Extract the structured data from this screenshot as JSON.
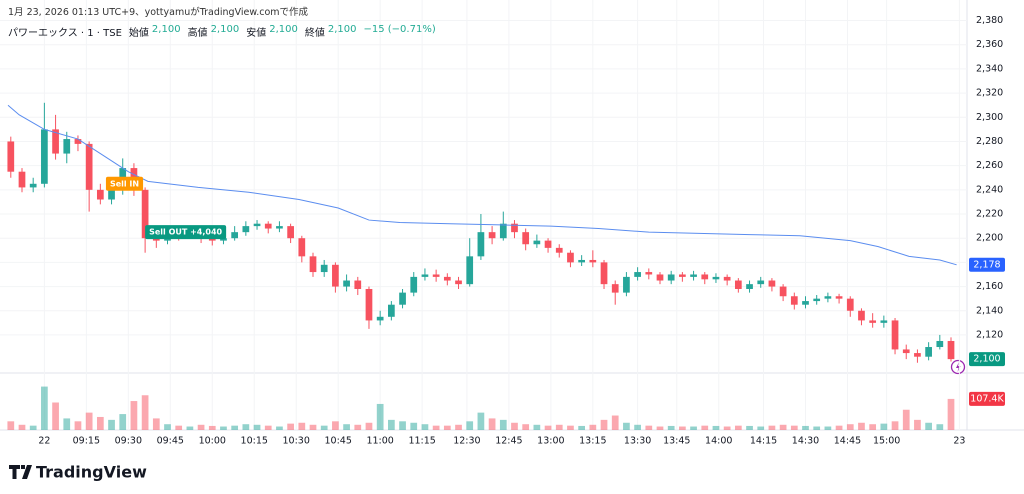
{
  "attribution": "1月 23, 2026 01:13 UTC+9、yottyamuがTradingView.comで作成",
  "legend": {
    "symbol": "パワーエックス · 1 · TSE",
    "open_label": "始値",
    "open": "2,100",
    "high_label": "高値",
    "high": "2,100",
    "low_label": "安値",
    "low": "2,100",
    "close_label": "終値",
    "close": "2,100",
    "change": "−15 (−0.71%)"
  },
  "brand": "TradingView",
  "chart_data": {
    "type": "candlestick",
    "up_color": "#26a69a",
    "down_color": "#f7525f",
    "ma_color": "#5b8def",
    "grid": true,
    "xlim": [
      -13,
      329
    ],
    "ylim": [
      2091,
      2397
    ],
    "volume_lim": [
      0,
      190000
    ],
    "xticks": [
      {
        "value": 0,
        "label": "22"
      },
      {
        "value": 15,
        "label": "09:15"
      },
      {
        "value": 30,
        "label": "09:30"
      },
      {
        "value": 45,
        "label": "09:45"
      },
      {
        "value": 60,
        "label": "10:00"
      },
      {
        "value": 75,
        "label": "10:15"
      },
      {
        "value": 90,
        "label": "10:30"
      },
      {
        "value": 105,
        "label": "10:45"
      },
      {
        "value": 120,
        "label": "11:00"
      },
      {
        "value": 135,
        "label": "11:15"
      },
      {
        "value": 151,
        "label": "12:30"
      },
      {
        "value": 166,
        "label": "12:45"
      },
      {
        "value": 181,
        "label": "13:00"
      },
      {
        "value": 196,
        "label": "13:15"
      },
      {
        "value": 212,
        "label": "13:30"
      },
      {
        "value": 226,
        "label": "13:45"
      },
      {
        "value": 241,
        "label": "14:00"
      },
      {
        "value": 257,
        "label": "14:15"
      },
      {
        "value": 272,
        "label": "14:30"
      },
      {
        "value": 287,
        "label": "14:45"
      },
      {
        "value": 301,
        "label": "15:00"
      },
      {
        "value": 327,
        "label": "23"
      }
    ],
    "yticks": [
      {
        "value": 2120,
        "label": "2,120"
      },
      {
        "value": 2140,
        "label": "2,140"
      },
      {
        "value": 2160,
        "label": "2,160"
      },
      {
        "value": 2180,
        "label": "2,180"
      },
      {
        "value": 2200,
        "label": "2,200"
      },
      {
        "value": 2220,
        "label": "2,220"
      },
      {
        "value": 2240,
        "label": "2,240"
      },
      {
        "value": 2260,
        "label": "2,260"
      },
      {
        "value": 2280,
        "label": "2,280"
      },
      {
        "value": 2300,
        "label": "2,300"
      },
      {
        "value": 2320,
        "label": "2,320"
      },
      {
        "value": 2340,
        "label": "2,340"
      },
      {
        "value": 2360,
        "label": "2,360"
      },
      {
        "value": 2380,
        "label": "2,380"
      }
    ],
    "x": [
      -12,
      -8,
      -4,
      0,
      4,
      8,
      12,
      16,
      20,
      24,
      28,
      32,
      36,
      40,
      44,
      48,
      52,
      56,
      60,
      64,
      68,
      72,
      76,
      80,
      84,
      88,
      92,
      96,
      100,
      104,
      108,
      112,
      116,
      120,
      124,
      128,
      132,
      136,
      140,
      144,
      148,
      152,
      156,
      160,
      164,
      168,
      172,
      176,
      180,
      184,
      188,
      192,
      196,
      200,
      204,
      208,
      212,
      216,
      220,
      224,
      228,
      232,
      236,
      240,
      244,
      248,
      252,
      256,
      260,
      264,
      268,
      272,
      276,
      280,
      284,
      288,
      292,
      296,
      300,
      304,
      308,
      312,
      316,
      320,
      324
    ],
    "open": [
      2280,
      2255,
      2242,
      2245,
      2290,
      2270,
      2282,
      2278,
      2240,
      2232,
      2240,
      2258,
      2240,
      2200,
      2198,
      2205,
      2203,
      2205,
      2200,
      2198,
      2200,
      2205,
      2210,
      2212,
      2208,
      2210,
      2200,
      2185,
      2172,
      2178,
      2160,
      2165,
      2158,
      2132,
      2135,
      2145,
      2155,
      2168,
      2170,
      2168,
      2165,
      2162,
      2185,
      2205,
      2200,
      2212,
      2205,
      2195,
      2198,
      2192,
      2188,
      2180,
      2182,
      2180,
      2162,
      2155,
      2168,
      2172,
      2170,
      2165,
      2170,
      2168,
      2170,
      2166,
      2168,
      2165,
      2158,
      2162,
      2165,
      2160,
      2152,
      2145,
      2148,
      2150,
      2152,
      2150,
      2140,
      2132,
      2130,
      2132,
      2108,
      2105,
      2102,
      2110,
      2115
    ],
    "high": [
      2284,
      2258,
      2250,
      2312,
      2302,
      2288,
      2285,
      2280,
      2245,
      2245,
      2266,
      2262,
      2242,
      2205,
      2208,
      2208,
      2210,
      2208,
      2203,
      2204,
      2210,
      2214,
      2215,
      2214,
      2214,
      2212,
      2202,
      2188,
      2182,
      2180,
      2170,
      2168,
      2160,
      2140,
      2148,
      2158,
      2172,
      2175,
      2174,
      2171,
      2168,
      2200,
      2220,
      2210,
      2222,
      2215,
      2208,
      2203,
      2200,
      2195,
      2190,
      2186,
      2190,
      2182,
      2165,
      2172,
      2176,
      2175,
      2172,
      2173,
      2172,
      2173,
      2172,
      2171,
      2170,
      2167,
      2165,
      2168,
      2167,
      2162,
      2155,
      2152,
      2153,
      2155,
      2154,
      2152,
      2142,
      2138,
      2136,
      2134,
      2112,
      2108,
      2114,
      2120,
      2118
    ],
    "low": [
      2250,
      2238,
      2238,
      2242,
      2265,
      2262,
      2272,
      2222,
      2228,
      2228,
      2236,
      2235,
      2188,
      2192,
      2195,
      2198,
      2200,
      2196,
      2194,
      2195,
      2198,
      2202,
      2207,
      2204,
      2205,
      2196,
      2180,
      2168,
      2168,
      2155,
      2156,
      2153,
      2125,
      2128,
      2132,
      2142,
      2152,
      2165,
      2164,
      2161,
      2158,
      2160,
      2182,
      2195,
      2198,
      2200,
      2190,
      2192,
      2188,
      2184,
      2176,
      2177,
      2176,
      2158,
      2145,
      2152,
      2165,
      2166,
      2162,
      2162,
      2164,
      2165,
      2162,
      2163,
      2161,
      2155,
      2155,
      2159,
      2156,
      2148,
      2141,
      2142,
      2145,
      2147,
      2146,
      2135,
      2128,
      2126,
      2126,
      2104,
      2100,
      2097,
      2099,
      2108,
      2098
    ],
    "close": [
      2255,
      2242,
      2245,
      2290,
      2270,
      2282,
      2278,
      2240,
      2232,
      2240,
      2258,
      2240,
      2200,
      2198,
      2205,
      2203,
      2205,
      2200,
      2198,
      2200,
      2205,
      2210,
      2212,
      2208,
      2210,
      2200,
      2185,
      2172,
      2178,
      2160,
      2165,
      2158,
      2132,
      2135,
      2145,
      2155,
      2168,
      2170,
      2168,
      2165,
      2162,
      2185,
      2205,
      2200,
      2212,
      2205,
      2195,
      2198,
      2192,
      2188,
      2180,
      2182,
      2180,
      2162,
      2155,
      2168,
      2172,
      2170,
      2165,
      2170,
      2168,
      2170,
      2166,
      2168,
      2165,
      2158,
      2162,
      2165,
      2160,
      2152,
      2145,
      2148,
      2150,
      2152,
      2150,
      2140,
      2132,
      2130,
      2132,
      2108,
      2105,
      2102,
      2110,
      2115,
      2100
    ],
    "volume": [
      30000,
      18000,
      15000,
      150000,
      95000,
      40000,
      30000,
      60000,
      45000,
      35000,
      55000,
      100000,
      120000,
      40000,
      20000,
      15000,
      12000,
      18000,
      14000,
      12000,
      15000,
      20000,
      18000,
      15000,
      12000,
      22000,
      25000,
      18000,
      15000,
      30000,
      20000,
      18000,
      25000,
      90000,
      35000,
      30000,
      25000,
      20000,
      15000,
      15000,
      18000,
      30000,
      60000,
      40000,
      35000,
      25000,
      20000,
      18000,
      15000,
      18000,
      15000,
      14000,
      18000,
      35000,
      50000,
      25000,
      18000,
      15000,
      12000,
      14000,
      12000,
      12000,
      15000,
      14000,
      12000,
      15000,
      14000,
      12000,
      15000,
      18000,
      15000,
      14000,
      12000,
      12000,
      15000,
      20000,
      25000,
      20000,
      22000,
      30000,
      70000,
      35000,
      25000,
      20000,
      107400
    ],
    "ma": {
      "x": [
        -13,
        -9,
        0,
        12,
        20,
        30,
        37,
        55,
        73,
        91,
        105,
        116,
        127,
        145,
        163,
        181,
        198,
        216,
        234,
        252,
        270,
        288,
        298,
        309,
        320,
        326
      ],
      "values": [
        2310,
        2302,
        2290,
        2282,
        2270,
        2255,
        2247,
        2242,
        2238,
        2232,
        2225,
        2215,
        2213,
        2212,
        2211,
        2210,
        2208,
        2205,
        2204,
        2203,
        2202,
        2198,
        2193,
        2185,
        2182,
        2178
      ]
    },
    "trades": [
      {
        "label": "Sell IN",
        "x": 22,
        "price": 2245,
        "color": "#ff9800"
      },
      {
        "label": "Sell OUT +4,040",
        "x": 36,
        "price": 2205,
        "color": "#089981"
      }
    ],
    "price_tag": {
      "value": 2100,
      "label": "2,100",
      "color": "#089981"
    },
    "ma_tag": {
      "value": 2178,
      "label": "2,178",
      "color": "#2962ff"
    },
    "volume_tag": {
      "value": 107400,
      "label": "107.4K",
      "color": "#f23645"
    }
  }
}
